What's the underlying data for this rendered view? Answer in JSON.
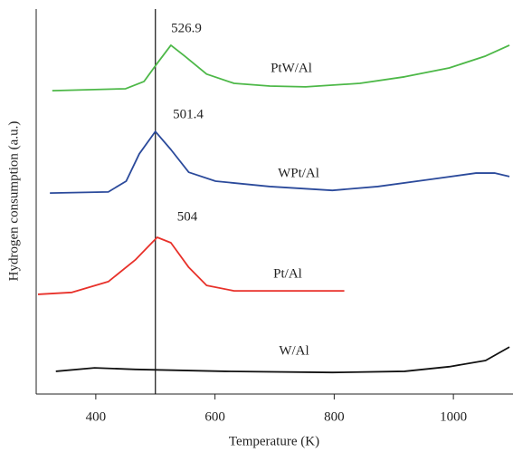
{
  "chart_data": {
    "type": "line",
    "x_label": "Temperature (K)",
    "y_label": "Hydrogen consumption (a.u.)",
    "xlim": [
      300,
      1100
    ],
    "ylim": [
      0,
      100
    ],
    "xticks": [
      400,
      600,
      800,
      1000
    ],
    "reference_line_x": 500,
    "series": [
      {
        "name": "PtW/Al",
        "color": "#4db848",
        "peak_label": "526.9",
        "x": [
          327,
          450,
          481,
          503,
          526,
          549,
          586,
          632,
          692,
          752,
          843,
          918,
          993,
          1054,
          1094
        ],
        "values": [
          78.8,
          79.3,
          81.2,
          85.9,
          90.6,
          87.8,
          83.1,
          80.7,
          80,
          79.8,
          80.7,
          82.4,
          84.7,
          87.8,
          90.6
        ]
      },
      {
        "name": "WPt/Al",
        "color": "#2b4a9b",
        "peak_label": "501.4",
        "x": [
          323,
          421,
          451,
          473,
          500,
          526,
          556,
          601,
          692,
          797,
          873,
          963,
          1038,
          1069,
          1094
        ],
        "values": [
          52.2,
          52.5,
          55.3,
          62.4,
          68.2,
          63.5,
          57.6,
          55.3,
          53.9,
          52.9,
          53.9,
          55.8,
          57.4,
          57.4,
          56.5
        ]
      },
      {
        "name": "Pt/Al",
        "color": "#e8312a",
        "peak_label": "504",
        "x": [
          303,
          360,
          421,
          466,
          503,
          526,
          556,
          586,
          632,
          722,
          817
        ],
        "values": [
          25.9,
          26.4,
          29.2,
          34.8,
          40.7,
          39.3,
          32.9,
          28.2,
          26.8,
          26.8,
          26.8
        ]
      },
      {
        "name": "W/Al",
        "color": "#111111",
        "x": [
          333,
          398,
          466,
          617,
          797,
          918,
          993,
          1054,
          1094
        ],
        "values": [
          5.9,
          6.8,
          6.4,
          5.9,
          5.6,
          5.9,
          7.1,
          8.7,
          12.2
        ]
      }
    ]
  }
}
